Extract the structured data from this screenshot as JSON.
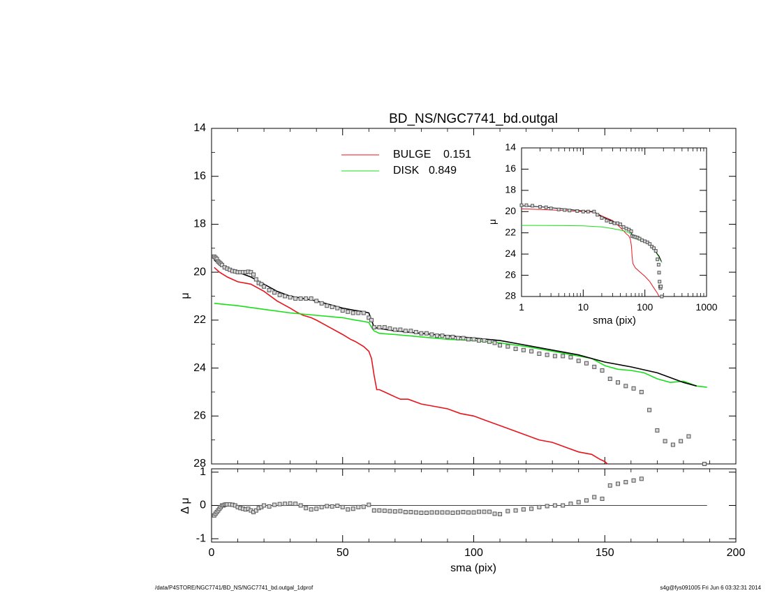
{
  "footer": {
    "left": "/data/P4STORE/NGC7741/BD_NS/NGC7741_bd.outgal_1dprof",
    "right": "s4g@fys091005  Fri Jun  6 03:32:31 2014"
  },
  "colors": {
    "bulge": "#e8141b",
    "disk": "#17e017",
    "data": "#555555",
    "axes": "#000000"
  },
  "chart_data": [
    {
      "id": "main",
      "type": "line",
      "title": "BD_NS/NGC7741_bd.outgal",
      "xlabel": "",
      "ylabel": "μ",
      "xlim": [
        0,
        200
      ],
      "ylim": [
        28,
        14
      ],
      "yticks": [
        14,
        16,
        18,
        20,
        22,
        24,
        26,
        28
      ],
      "xticks": [
        0,
        50,
        100,
        150,
        200
      ],
      "legend": [
        {
          "label": "BULGE",
          "value": "0.151",
          "color": "#e8141b"
        },
        {
          "label": "DISK",
          "value": "0.849",
          "color": "#17e017"
        }
      ],
      "legend_position": "top-center",
      "series": [
        {
          "name": "BULGE",
          "color": "#e8141b",
          "x": [
            1,
            3,
            6,
            10,
            15,
            20,
            25,
            30,
            33,
            35,
            38,
            40,
            45,
            50,
            53,
            55,
            58,
            60,
            61,
            62,
            63,
            64,
            66,
            68,
            70,
            72,
            75,
            80,
            85,
            90,
            95,
            100,
            105,
            110,
            115,
            120,
            125,
            130,
            135,
            140,
            145,
            148,
            150,
            151
          ],
          "y": [
            19.8,
            20.0,
            20.2,
            20.4,
            20.5,
            20.8,
            21.2,
            21.5,
            21.7,
            21.8,
            21.9,
            22.0,
            22.3,
            22.6,
            22.8,
            22.9,
            23.1,
            23.3,
            23.6,
            24.3,
            24.9,
            24.9,
            25.0,
            25.1,
            25.2,
            25.3,
            25.3,
            25.5,
            25.6,
            25.7,
            25.9,
            26.0,
            26.2,
            26.4,
            26.6,
            26.8,
            27.0,
            27.1,
            27.3,
            27.5,
            27.6,
            27.8,
            27.9,
            28.0
          ]
        },
        {
          "name": "DISK",
          "color": "#17e017",
          "x": [
            1,
            10,
            20,
            30,
            40,
            50,
            55,
            58,
            60,
            61,
            62,
            64,
            70,
            80,
            90,
            100,
            110,
            120,
            130,
            140,
            145,
            150,
            155,
            160,
            165,
            170,
            175,
            180,
            185,
            189
          ],
          "y": [
            21.3,
            21.4,
            21.55,
            21.7,
            21.8,
            21.9,
            22.0,
            22.05,
            22.1,
            22.3,
            22.45,
            22.55,
            22.6,
            22.7,
            22.8,
            22.85,
            22.95,
            23.1,
            23.3,
            23.5,
            23.6,
            23.9,
            24.05,
            24.1,
            24.2,
            24.45,
            24.6,
            24.55,
            24.75,
            24.8
          ]
        },
        {
          "name": "",
          "color": "#000000",
          "x": [
            1,
            5,
            10,
            15,
            20,
            25,
            30,
            35,
            40,
            45,
            50,
            55,
            58,
            60,
            61,
            62,
            64,
            70,
            80,
            90,
            100,
            110,
            120,
            130,
            140,
            150,
            160,
            170,
            175,
            180,
            185
          ],
          "y": [
            19.5,
            19.8,
            20.0,
            20.2,
            20.5,
            20.8,
            21.0,
            21.1,
            21.2,
            21.35,
            21.5,
            21.6,
            21.65,
            21.7,
            22.0,
            22.3,
            22.35,
            22.45,
            22.55,
            22.65,
            22.75,
            22.85,
            23.05,
            23.25,
            23.45,
            23.75,
            23.95,
            24.2,
            24.4,
            24.6,
            24.75
          ]
        },
        {
          "name": "",
          "type": "scatter",
          "marker": "square",
          "color": "#555555",
          "x": [
            1,
            1.5,
            2,
            2.5,
            3,
            3.5,
            4,
            5,
            6,
            7,
            8,
            9,
            10,
            11,
            12,
            13,
            14,
            15,
            16,
            17,
            18,
            19,
            20,
            22,
            24,
            26,
            28,
            30,
            32,
            34,
            36,
            38,
            40,
            42,
            44,
            46,
            48,
            50,
            52,
            54,
            56,
            58,
            60,
            61,
            62,
            64,
            66,
            68,
            70,
            72,
            74,
            76,
            78,
            80,
            82,
            84,
            86,
            88,
            90,
            92,
            94,
            96,
            98,
            100,
            102,
            104,
            106,
            108,
            110,
            113,
            116,
            119,
            122,
            125,
            128,
            131,
            134,
            137,
            140,
            143,
            146,
            149,
            152,
            155,
            158,
            161,
            164,
            167,
            170,
            173,
            176,
            179,
            182,
            188
          ],
          "y": [
            19.35,
            19.4,
            19.45,
            19.55,
            19.6,
            19.65,
            19.7,
            19.8,
            19.85,
            19.9,
            19.95,
            19.97,
            20.0,
            20.0,
            20.0,
            20.0,
            19.98,
            20.0,
            20.1,
            20.3,
            20.45,
            20.5,
            20.6,
            20.75,
            20.85,
            20.95,
            21.0,
            21.05,
            21.1,
            21.1,
            21.1,
            21.1,
            21.2,
            21.3,
            21.4,
            21.45,
            21.5,
            21.6,
            21.65,
            21.7,
            21.7,
            21.7,
            21.9,
            22.0,
            22.3,
            22.3,
            22.3,
            22.35,
            22.4,
            22.4,
            22.45,
            22.45,
            22.5,
            22.55,
            22.55,
            22.6,
            22.65,
            22.65,
            22.7,
            22.7,
            22.75,
            22.75,
            22.8,
            22.8,
            22.85,
            22.85,
            22.9,
            22.95,
            23.05,
            23.1,
            23.2,
            23.25,
            23.3,
            23.4,
            23.45,
            23.5,
            23.5,
            23.55,
            23.7,
            23.8,
            23.95,
            24.1,
            24.45,
            24.6,
            24.75,
            24.85,
            25.0,
            25.75,
            26.6,
            27.05,
            27.2,
            27.05,
            26.85,
            28.0
          ]
        }
      ]
    },
    {
      "id": "residual",
      "type": "scatter",
      "xlabel": "sma (pix)",
      "ylabel": "Δ μ",
      "xlim": [
        0,
        200
      ],
      "ylim": [
        -1.1,
        1.1
      ],
      "yticks": [
        -1,
        0,
        1
      ],
      "xticks": [
        0,
        50,
        100,
        150,
        200
      ],
      "series": [
        {
          "name": "",
          "marker": "square",
          "color": "#555555",
          "x": [
            1,
            1.5,
            2,
            2.5,
            3,
            3.5,
            4,
            4.5,
            5,
            5.5,
            6,
            7,
            8,
            9,
            10,
            11,
            12,
            13,
            14,
            15,
            16,
            17,
            18,
            19,
            20,
            22,
            24,
            26,
            28,
            30,
            32,
            34,
            36,
            38,
            40,
            42,
            44,
            46,
            48,
            50,
            52,
            54,
            56,
            58,
            60,
            62,
            64,
            66,
            68,
            70,
            72,
            74,
            76,
            78,
            80,
            82,
            84,
            86,
            88,
            90,
            92,
            94,
            96,
            98,
            100,
            102,
            104,
            106,
            108,
            110,
            113,
            116,
            119,
            122,
            125,
            128,
            131,
            134,
            137,
            140,
            143,
            146,
            149,
            152,
            155,
            158,
            161,
            164
          ],
          "y": [
            -0.3,
            -0.25,
            -0.2,
            -0.15,
            -0.1,
            -0.05,
            0.0,
            0.0,
            0.02,
            0.03,
            0.03,
            0.03,
            0.02,
            0.0,
            -0.05,
            -0.08,
            -0.1,
            -0.12,
            -0.1,
            -0.15,
            -0.2,
            -0.15,
            -0.08,
            -0.05,
            0.0,
            -0.03,
            0.02,
            0.04,
            0.05,
            0.06,
            0.05,
            0.0,
            -0.08,
            -0.12,
            -0.1,
            -0.05,
            -0.02,
            -0.03,
            -0.01,
            -0.05,
            -0.12,
            -0.1,
            -0.05,
            -0.04,
            0.02,
            -0.15,
            -0.15,
            -0.16,
            -0.17,
            -0.18,
            -0.17,
            -0.2,
            -0.2,
            -0.21,
            -0.22,
            -0.22,
            -0.21,
            -0.21,
            -0.21,
            -0.21,
            -0.22,
            -0.21,
            -0.2,
            -0.21,
            -0.21,
            -0.19,
            -0.19,
            -0.19,
            -0.25,
            -0.26,
            -0.17,
            -0.15,
            -0.12,
            -0.1,
            -0.05,
            -0.02,
            0.0,
            0.0,
            0.05,
            0.1,
            0.15,
            0.25,
            0.2,
            0.6,
            0.65,
            0.7,
            0.75,
            0.8
          ]
        }
      ]
    },
    {
      "id": "inset",
      "type": "line",
      "xscale": "log",
      "xlabel": "sma (pix)",
      "ylabel": "μ",
      "xlim": [
        1,
        1000
      ],
      "ylim": [
        28,
        14
      ],
      "yticks": [
        14,
        16,
        18,
        20,
        22,
        24,
        26,
        28
      ],
      "xticks": [
        "1",
        "10",
        "100",
        "1000"
      ],
      "series": [
        {
          "name": "BULGE",
          "color": "#e8141b",
          "x": [
            1,
            2,
            5,
            10,
            15,
            20,
            30,
            40,
            50,
            55,
            58,
            60,
            61,
            62,
            64,
            70,
            80,
            100,
            120,
            140,
            160,
            170
          ],
          "y": [
            19.75,
            19.8,
            19.9,
            20.0,
            20.05,
            20.4,
            20.85,
            21.5,
            22.1,
            22.3,
            22.6,
            23.1,
            23.5,
            24.2,
            24.9,
            25.3,
            25.6,
            26.1,
            26.6,
            27.2,
            27.7,
            28.0
          ]
        },
        {
          "name": "DISK",
          "color": "#17e017",
          "x": [
            1,
            5,
            10,
            20,
            30,
            40,
            50,
            60,
            62,
            70,
            100,
            130,
            150,
            170,
            189
          ],
          "y": [
            21.3,
            21.32,
            21.35,
            21.45,
            21.6,
            21.75,
            21.9,
            22.1,
            22.4,
            22.55,
            22.85,
            23.3,
            23.8,
            24.3,
            24.8
          ]
        },
        {
          "name": "",
          "color": "#000000",
          "x": [
            1,
            2,
            5,
            10,
            15,
            20,
            30,
            40,
            50,
            58,
            60,
            62,
            70,
            100,
            130,
            150,
            170,
            185
          ],
          "y": [
            19.45,
            19.55,
            19.75,
            19.95,
            20.0,
            20.5,
            20.9,
            21.3,
            21.55,
            21.65,
            21.75,
            22.3,
            22.45,
            22.8,
            23.3,
            23.8,
            24.2,
            24.7
          ]
        },
        {
          "name": "",
          "type": "scatter",
          "marker": "square",
          "color": "#555555",
          "x": [
            1,
            1.2,
            1.5,
            2,
            2.5,
            3,
            4,
            5,
            6,
            8,
            10,
            12,
            15,
            17,
            20,
            24,
            28,
            32,
            36,
            40,
            45,
            50,
            55,
            60,
            62,
            66,
            70,
            76,
            82,
            90,
            100,
            110,
            120,
            130,
            140,
            150,
            160,
            167,
            170,
            173,
            176,
            179,
            182,
            188
          ],
          "y": [
            19.4,
            19.4,
            19.45,
            19.55,
            19.6,
            19.7,
            19.8,
            19.85,
            19.9,
            19.95,
            20.0,
            20.0,
            20.0,
            20.3,
            20.6,
            20.85,
            21.0,
            21.1,
            21.1,
            21.2,
            21.45,
            21.6,
            21.7,
            21.85,
            22.3,
            22.35,
            22.4,
            22.45,
            22.55,
            22.7,
            22.8,
            22.9,
            23.05,
            23.3,
            23.45,
            23.7,
            24.5,
            25.0,
            25.75,
            26.6,
            27.05,
            27.2,
            27.05,
            28.0
          ]
        }
      ]
    }
  ]
}
